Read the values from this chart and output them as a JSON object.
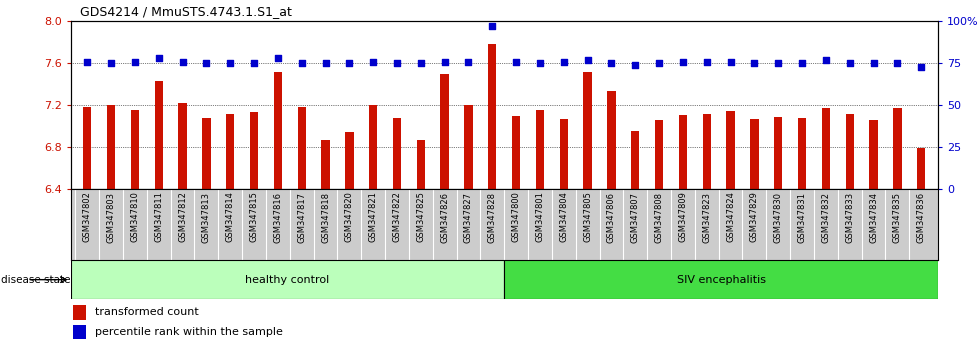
{
  "title": "GDS4214 / MmuSTS.4743.1.S1_at",
  "categories": [
    "GSM347802",
    "GSM347803",
    "GSM347810",
    "GSM347811",
    "GSM347812",
    "GSM347813",
    "GSM347814",
    "GSM347815",
    "GSM347816",
    "GSM347817",
    "GSM347818",
    "GSM347820",
    "GSM347821",
    "GSM347822",
    "GSM347825",
    "GSM347826",
    "GSM347827",
    "GSM347828",
    "GSM347800",
    "GSM347801",
    "GSM347804",
    "GSM347805",
    "GSM347806",
    "GSM347807",
    "GSM347808",
    "GSM347809",
    "GSM347823",
    "GSM347824",
    "GSM347829",
    "GSM347830",
    "GSM347831",
    "GSM347832",
    "GSM347833",
    "GSM347834",
    "GSM347835",
    "GSM347836"
  ],
  "bar_values": [
    7.18,
    7.2,
    7.16,
    7.43,
    7.22,
    7.08,
    7.12,
    7.14,
    7.52,
    7.18,
    6.87,
    6.95,
    7.2,
    7.08,
    6.87,
    7.5,
    7.2,
    7.78,
    7.1,
    7.16,
    7.07,
    7.52,
    7.34,
    6.96,
    7.06,
    7.11,
    7.12,
    7.15,
    7.07,
    7.09,
    7.08,
    7.17,
    7.12,
    7.06,
    7.17,
    6.79
  ],
  "percentile_values": [
    76,
    75,
    76,
    78,
    76,
    75,
    75,
    75,
    78,
    75,
    75,
    75,
    76,
    75,
    75,
    76,
    76,
    97,
    76,
    75,
    76,
    77,
    75,
    74,
    75,
    76,
    76,
    76,
    75,
    75,
    75,
    77,
    75,
    75,
    75,
    73
  ],
  "ylim_left": [
    6.4,
    8.0
  ],
  "ylim_right": [
    0,
    100
  ],
  "yticks_left": [
    6.4,
    6.8,
    7.2,
    7.6,
    8.0
  ],
  "yticks_right": [
    0,
    25,
    50,
    75,
    100
  ],
  "bar_color": "#cc1100",
  "dot_color": "#0000cc",
  "background_color": "#ffffff",
  "plot_bg_color": "#ffffff",
  "healthy_count": 18,
  "healthy_label": "healthy control",
  "sick_label": "SIV encephalitis",
  "healthy_color": "#bbffbb",
  "sick_color": "#44dd44",
  "xticklabel_bg": "#cccccc",
  "disease_state_label": "disease state",
  "legend_bar_label": "transformed count",
  "legend_dot_label": "percentile rank within the sample",
  "axis_left_color": "#cc1100",
  "axis_right_color": "#0000cc"
}
